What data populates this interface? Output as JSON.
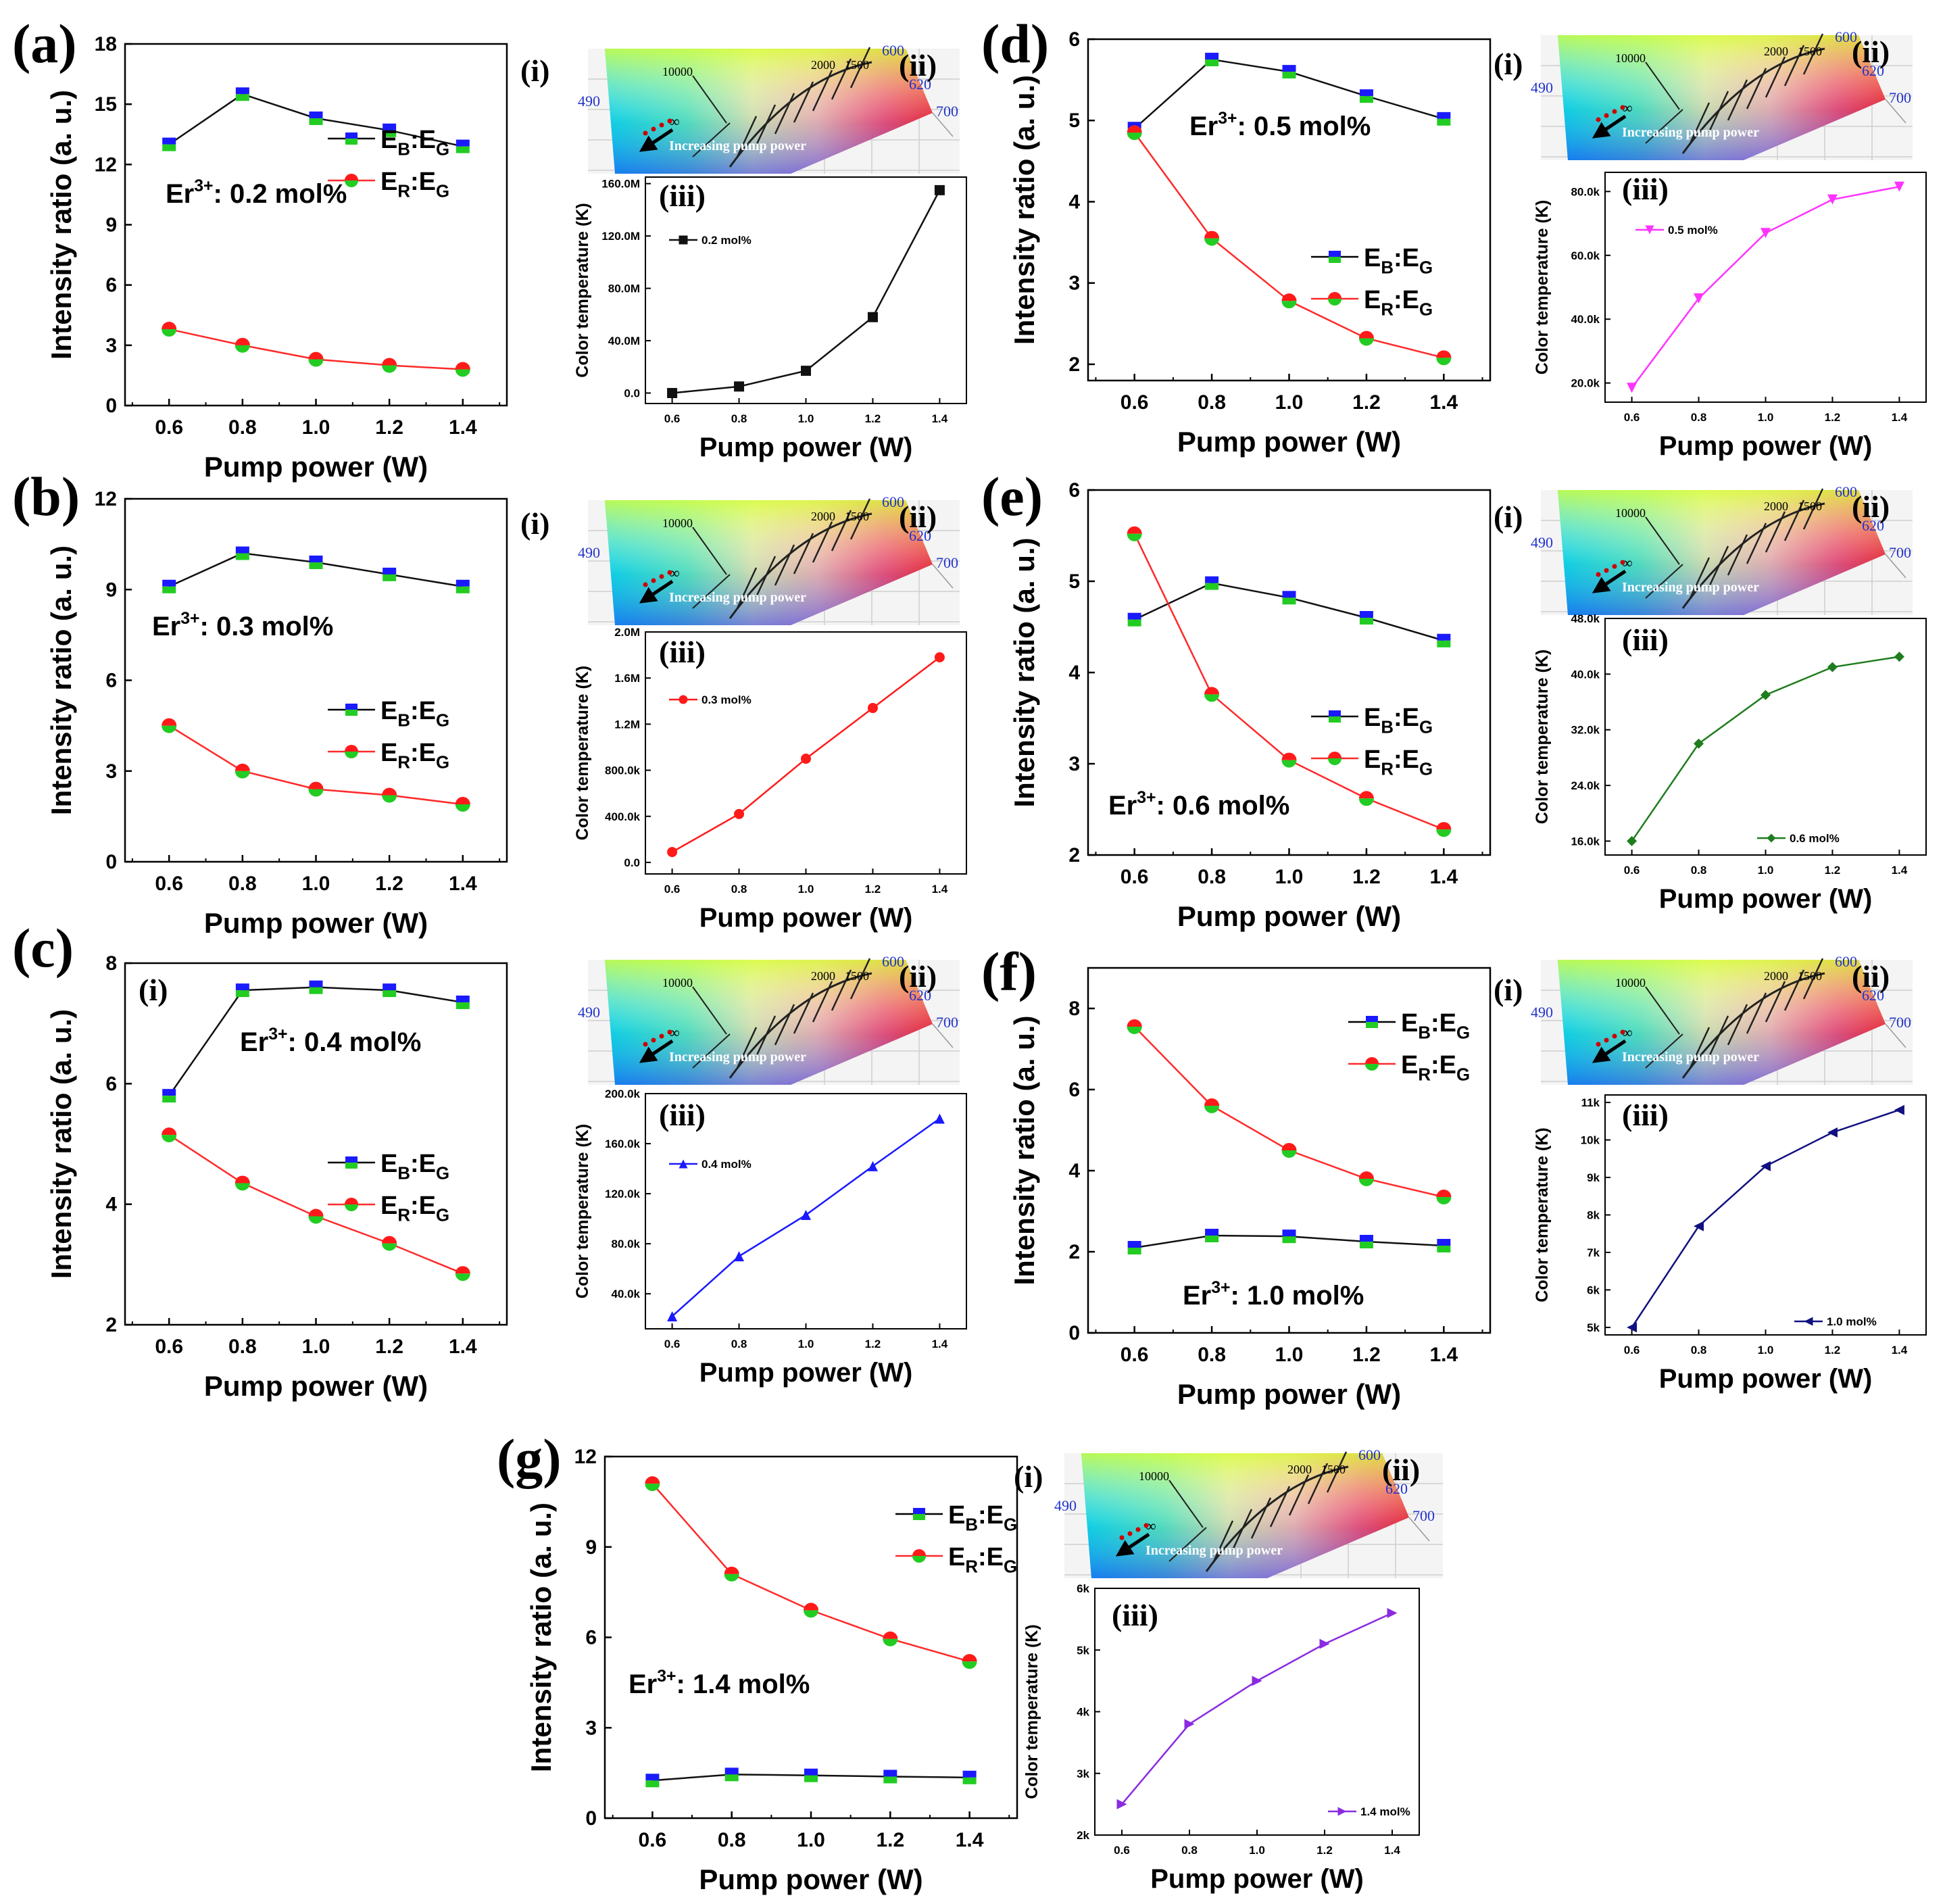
{
  "figure": {
    "x_axis_title": "Pump power (W)",
    "main_y_title": "Intensity ratio (a. u.)",
    "inset_y_title": "Color temperature (K)",
    "roman_main": "(i)",
    "roman_cie": "(ii)",
    "roman_ct": "(iii)",
    "legend_blue_main": "E",
    "legend_blue_sub1": "B",
    "legend_blue_sub2": "G",
    "legend_red_main": "E",
    "legend_red_sub1": "R",
    "legend_red_sub2": "G",
    "er_label": "Er",
    "er_sup": "3+",
    "cie_arrow_text": "Increasing pump power",
    "cie_labels": [
      "10000",
      "2000",
      "1500",
      "600",
      "620",
      "700",
      "490",
      "∞"
    ]
  },
  "colors": {
    "blue_marker": "#1a1aff",
    "green_marker": "#22cc22",
    "red_marker": "#ff1a1a",
    "red_line": "#ff2a2a",
    "black_line": "#111111"
  },
  "chart_data": [
    {
      "panel": "(a)",
      "type": "line",
      "concentration": ": 0.2 mol%",
      "x": [
        0.6,
        0.8,
        1.0,
        1.2,
        1.4
      ],
      "x_ticks": [
        "0.6",
        "0.8",
        "1.0",
        "1.2",
        "1.4"
      ],
      "ylim": [
        0,
        18
      ],
      "y_ticks": [
        0,
        3,
        6,
        9,
        12,
        15,
        18
      ],
      "y_tick_labels": [
        "0",
        "3",
        "6",
        "9",
        "12",
        "15",
        "18"
      ],
      "series": [
        {
          "name": "EB:EG",
          "values": [
            13.0,
            15.5,
            14.3,
            13.7,
            12.9
          ]
        },
        {
          "name": "ER:EG",
          "values": [
            3.8,
            3.0,
            2.3,
            2.0,
            1.8
          ]
        }
      ],
      "ct": {
        "legend": "0.2 mol%",
        "marker": "square",
        "color": "#111111",
        "values": [
          0.0,
          5.0,
          17.0,
          58.0,
          155.0
        ],
        "ylim": [
          -8,
          165
        ],
        "y_ticks": [
          0,
          40,
          80,
          120,
          160
        ],
        "y_tick_labels": [
          "0.0",
          "40.0M",
          "80.0M",
          "120.0M",
          "160.0M"
        ]
      }
    },
    {
      "panel": "(b)",
      "type": "line",
      "concentration": ": 0.3 mol%",
      "x": [
        0.6,
        0.8,
        1.0,
        1.2,
        1.4
      ],
      "x_ticks": [
        "0.6",
        "0.8",
        "1.0",
        "1.2",
        "1.4"
      ],
      "ylim": [
        0,
        12
      ],
      "y_ticks": [
        0,
        3,
        6,
        9,
        12
      ],
      "y_tick_labels": [
        "0",
        "3",
        "6",
        "9",
        "12"
      ],
      "series": [
        {
          "name": "EB:EG",
          "values": [
            9.1,
            10.2,
            9.9,
            9.5,
            9.1
          ]
        },
        {
          "name": "ER:EG",
          "values": [
            4.5,
            3.0,
            2.4,
            2.2,
            1.9
          ]
        }
      ],
      "ct": {
        "legend": "0.3 mol%",
        "marker": "circle",
        "color": "#ff1a1a",
        "values": [
          90,
          420,
          900,
          1340,
          1780
        ],
        "ylim": [
          -100,
          2000
        ],
        "y_ticks": [
          0,
          400,
          800,
          1200,
          1600,
          2000
        ],
        "y_tick_labels": [
          "0.0",
          "400.0k",
          "800.0k",
          "1.2M",
          "1.6M",
          "2.0M"
        ]
      }
    },
    {
      "panel": "(c)",
      "type": "line",
      "concentration": ": 0.4 mol%",
      "x": [
        0.6,
        0.8,
        1.0,
        1.2,
        1.4
      ],
      "x_ticks": [
        "0.6",
        "0.8",
        "1.0",
        "1.2",
        "1.4"
      ],
      "ylim": [
        2,
        8
      ],
      "y_ticks": [
        2,
        4,
        6,
        8
      ],
      "y_tick_labels": [
        "2",
        "4",
        "6",
        "8"
      ],
      "series": [
        {
          "name": "EB:EG",
          "values": [
            5.8,
            7.55,
            7.6,
            7.55,
            7.35
          ]
        },
        {
          "name": "ER:EG",
          "values": [
            5.15,
            4.35,
            3.8,
            3.35,
            2.85
          ]
        }
      ],
      "ct": {
        "legend": "0.4 mol%",
        "marker": "triangle-up",
        "color": "#1a1aff",
        "values": [
          22,
          70,
          103,
          142,
          180
        ],
        "ylim": [
          12,
          200
        ],
        "y_ticks": [
          40,
          80,
          120,
          160,
          200
        ],
        "y_tick_labels": [
          "40.0k",
          "80.0k",
          "120.0k",
          "160.0k",
          "200.0k"
        ]
      }
    },
    {
      "panel": "(d)",
      "type": "line",
      "concentration": ": 0.5 mol%",
      "x": [
        0.6,
        0.8,
        1.0,
        1.2,
        1.4
      ],
      "x_ticks": [
        "0.6",
        "0.8",
        "1.0",
        "1.2",
        "1.4"
      ],
      "ylim": [
        1.8,
        6
      ],
      "y_ticks": [
        2,
        3,
        4,
        5,
        6
      ],
      "y_tick_labels": [
        "2",
        "3",
        "4",
        "5",
        "6"
      ],
      "series": [
        {
          "name": "EB:EG",
          "values": [
            4.9,
            5.75,
            5.6,
            5.3,
            5.02
          ]
        },
        {
          "name": "ER:EG",
          "values": [
            4.85,
            3.55,
            2.78,
            2.32,
            2.08
          ]
        }
      ],
      "ct": {
        "legend": "0.5 mol%",
        "marker": "triangle-down",
        "color": "#ff33ff",
        "values": [
          18.5,
          46.5,
          67.0,
          77.5,
          81.5
        ],
        "ylim": [
          14,
          86
        ],
        "y_ticks": [
          20,
          40,
          60,
          80
        ],
        "y_tick_labels": [
          "20.0k",
          "40.0k",
          "60.0k",
          "80.0k"
        ]
      }
    },
    {
      "panel": "(e)",
      "type": "line",
      "concentration": ": 0.6 mol%",
      "x": [
        0.6,
        0.8,
        1.0,
        1.2,
        1.4
      ],
      "x_ticks": [
        "0.6",
        "0.8",
        "1.0",
        "1.2",
        "1.4"
      ],
      "ylim": [
        2,
        6
      ],
      "y_ticks": [
        2,
        3,
        4,
        5,
        6
      ],
      "y_tick_labels": [
        "2",
        "3",
        "4",
        "5",
        "6"
      ],
      "series": [
        {
          "name": "EB:EG",
          "values": [
            4.58,
            4.98,
            4.82,
            4.6,
            4.35
          ]
        },
        {
          "name": "ER:EG",
          "values": [
            5.52,
            3.76,
            3.04,
            2.62,
            2.28
          ]
        }
      ],
      "ct": {
        "legend": "0.6 mol%",
        "marker": "diamond",
        "color": "#1e7d1e",
        "values": [
          16.0,
          30.0,
          37.0,
          41.0,
          42.5
        ],
        "ylim": [
          14,
          48
        ],
        "y_ticks": [
          16,
          24,
          32,
          40,
          48
        ],
        "y_tick_labels": [
          "16.0k",
          "24.0k",
          "32.0k",
          "40.0k",
          "48.0k"
        ]
      }
    },
    {
      "panel": "(f)",
      "type": "line",
      "concentration": ": 1.0 mol%",
      "x": [
        0.6,
        0.8,
        1.0,
        1.2,
        1.4
      ],
      "x_ticks": [
        "0.6",
        "0.8",
        "1.0",
        "1.2",
        "1.4"
      ],
      "ylim": [
        0,
        9
      ],
      "y_ticks": [
        0,
        2,
        4,
        6,
        8
      ],
      "y_tick_labels": [
        "0",
        "2",
        "4",
        "6",
        "8"
      ],
      "series": [
        {
          "name": "EB:EG",
          "values": [
            2.1,
            2.4,
            2.38,
            2.25,
            2.15
          ]
        },
        {
          "name": "ER:EG",
          "values": [
            7.55,
            5.6,
            4.5,
            3.8,
            3.35
          ]
        }
      ],
      "ct": {
        "legend": "1.0 mol%",
        "marker": "triangle-left",
        "color": "#101080",
        "values": [
          5.0,
          7.7,
          9.3,
          10.2,
          10.8
        ],
        "ylim": [
          4.8,
          11.2
        ],
        "y_ticks": [
          5,
          6,
          7,
          8,
          9,
          10,
          11
        ],
        "y_tick_labels": [
          "5k",
          "6k",
          "7k",
          "8k",
          "9k",
          "10k",
          "11k"
        ]
      }
    },
    {
      "panel": "(g)",
      "type": "line",
      "concentration": ": 1.4 mol%",
      "x": [
        0.6,
        0.8,
        1.0,
        1.2,
        1.4
      ],
      "x_ticks": [
        "0.6",
        "0.8",
        "1.0",
        "1.2",
        "1.4"
      ],
      "ylim": [
        0,
        12
      ],
      "y_ticks": [
        0,
        3,
        6,
        9,
        12
      ],
      "y_tick_labels": [
        "0",
        "3",
        "6",
        "9",
        "12"
      ],
      "series": [
        {
          "name": "EB:EG",
          "values": [
            1.25,
            1.45,
            1.42,
            1.38,
            1.35
          ]
        },
        {
          "name": "ER:EG",
          "values": [
            11.1,
            8.1,
            6.9,
            5.95,
            5.2
          ]
        }
      ],
      "ct": {
        "legend": "1.4 mol%",
        "marker": "triangle-right",
        "color": "#8a2be2",
        "values": [
          2.5,
          3.8,
          4.5,
          5.1,
          5.6
        ],
        "ylim": [
          2,
          6
        ],
        "y_ticks": [
          2,
          3,
          4,
          5,
          6
        ],
        "y_tick_labels": [
          "2k",
          "3k",
          "4k",
          "5k",
          "6k"
        ]
      }
    }
  ]
}
